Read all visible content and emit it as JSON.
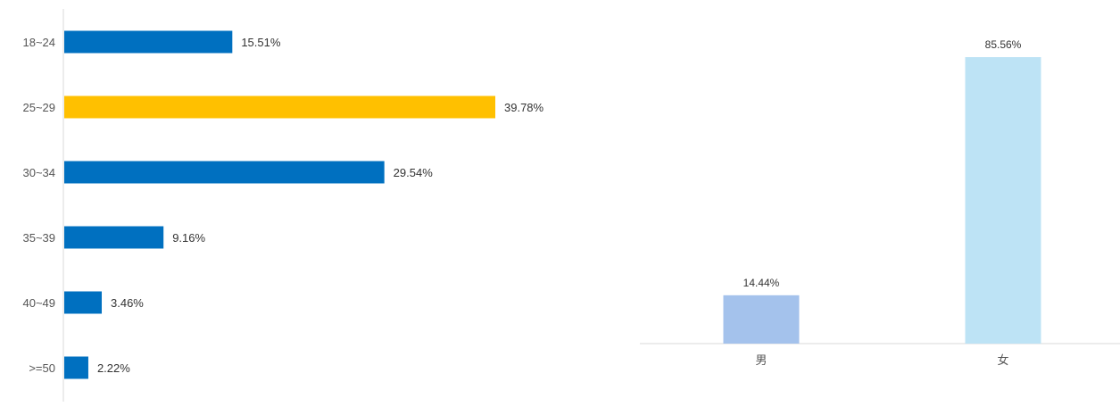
{
  "chart_data": [
    {
      "type": "bar",
      "orientation": "horizontal",
      "categories": [
        "18~24",
        "25~29",
        "30~34",
        "35~39",
        "40~49",
        ">=50"
      ],
      "values": [
        15.51,
        39.78,
        29.54,
        9.16,
        3.46,
        2.22
      ],
      "value_labels": [
        "15.51%",
        "39.78%",
        "29.54%",
        "9.16%",
        "3.46%",
        "2.22%"
      ],
      "colors": [
        "#0070c0",
        "#ffc000",
        "#0070c0",
        "#0070c0",
        "#0070c0",
        "#0070c0"
      ],
      "xlim": [
        0,
        40
      ]
    },
    {
      "type": "bar",
      "orientation": "vertical",
      "categories": [
        "男",
        "女"
      ],
      "values": [
        14.44,
        85.56
      ],
      "value_labels": [
        "14.44%",
        "85.56%"
      ],
      "colors": [
        "#a4c2ec",
        "#bde3f5"
      ],
      "ylim": [
        0,
        85.56
      ]
    }
  ]
}
